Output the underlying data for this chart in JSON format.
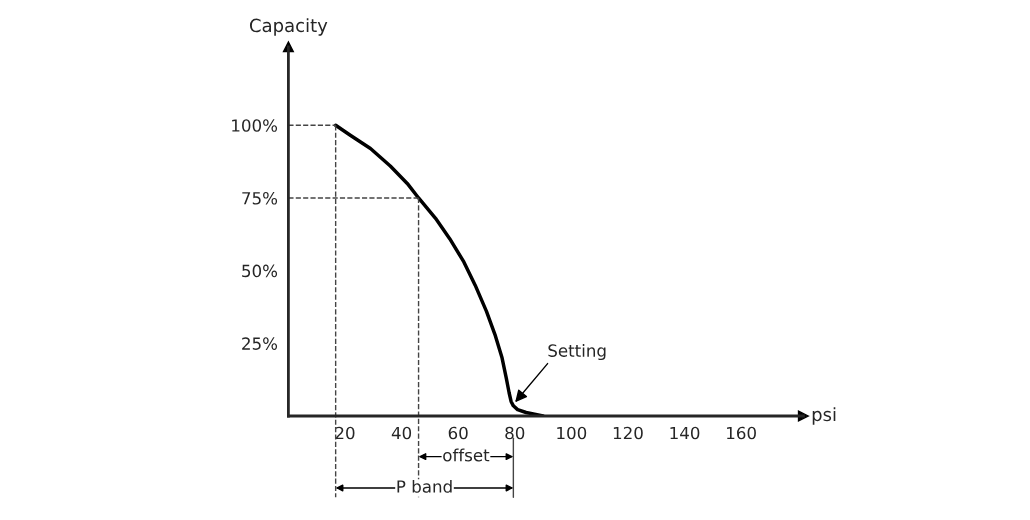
{
  "chart_data": {
    "type": "line",
    "xlabel": "psi",
    "ylabel": "Capacity",
    "x": [
      16.7,
      22,
      29,
      36,
      42,
      46,
      52,
      57,
      62,
      66,
      70,
      73,
      75.5,
      77,
      78,
      78.7,
      79.5,
      81,
      84,
      90
    ],
    "series": [
      {
        "color": "#000000",
        "values": [
          100,
          96.5,
          92,
          86,
          80,
          75,
          68,
          61,
          53,
          45,
          36,
          28,
          20,
          13,
          8,
          5,
          3.5,
          2.2,
          1.2,
          0
        ]
      }
    ],
    "xlim": [
      0,
      182
    ],
    "ylim": [
      0,
      127
    ],
    "xticks": [
      20,
      40,
      60,
      80,
      100,
      120,
      140,
      160
    ],
    "yticks": [
      {
        "value": 25,
        "label": "25%"
      },
      {
        "value": 50,
        "label": "50%"
      },
      {
        "value": 75,
        "label": "75%"
      },
      {
        "value": 100,
        "label": "100%"
      }
    ],
    "ref_lines": [
      {
        "axis": "y",
        "value": 100,
        "line_style": "dashed",
        "color": "#444444"
      },
      {
        "axis": "y",
        "value": 75,
        "line_style": "dashed",
        "color": "#444444"
      },
      {
        "axis": "x",
        "value": 16.7,
        "line_style": "dashed",
        "color": "#444444"
      },
      {
        "axis": "x",
        "value": 46,
        "line_style": "dashed",
        "color": "#444444"
      }
    ],
    "annotations": [
      {
        "text": "Setting",
        "x": 79.5,
        "y": 4
      },
      "offset",
      "P band"
    ],
    "grid": false,
    "marker": "none",
    "line_style": "solid"
  }
}
